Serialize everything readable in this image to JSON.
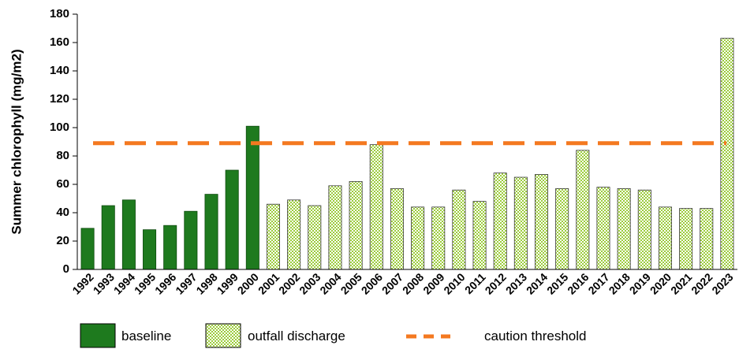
{
  "chart_data": {
    "type": "bar",
    "ylabel": "Summer chlorophyll (mg/m2)",
    "ylim": [
      0,
      180
    ],
    "yticks": [
      0,
      20,
      40,
      60,
      80,
      100,
      120,
      140,
      160,
      180
    ],
    "grid": false,
    "legend_position": "bottom",
    "categories": [
      "1992",
      "1993",
      "1994",
      "1995",
      "1996",
      "1997",
      "1998",
      "1999",
      "2000",
      "2001",
      "2002",
      "2003",
      "2004",
      "2005",
      "2006",
      "2007",
      "2008",
      "2009",
      "2010",
      "2011",
      "2012",
      "2013",
      "2014",
      "2015",
      "2016",
      "2017",
      "2018",
      "2019",
      "2020",
      "2021",
      "2022",
      "2023"
    ],
    "series": [
      {
        "name": "baseline",
        "style": "solid",
        "color": "#1e7a1e",
        "values": [
          29,
          45,
          49,
          28,
          31,
          41,
          53,
          70,
          101,
          null,
          null,
          null,
          null,
          null,
          null,
          null,
          null,
          null,
          null,
          null,
          null,
          null,
          null,
          null,
          null,
          null,
          null,
          null,
          null,
          null,
          null,
          null
        ]
      },
      {
        "name": "outfall discharge",
        "style": "checkered",
        "color": "#9ccc3c",
        "values": [
          null,
          null,
          null,
          null,
          null,
          null,
          null,
          null,
          null,
          46,
          49,
          45,
          59,
          62,
          88,
          57,
          44,
          44,
          56,
          48,
          68,
          65,
          67,
          57,
          84,
          58,
          57,
          56,
          44,
          43,
          43,
          163
        ]
      }
    ],
    "threshold": {
      "name": "caution threshold",
      "value": 89,
      "color": "#f47920",
      "style": "dashed"
    }
  }
}
